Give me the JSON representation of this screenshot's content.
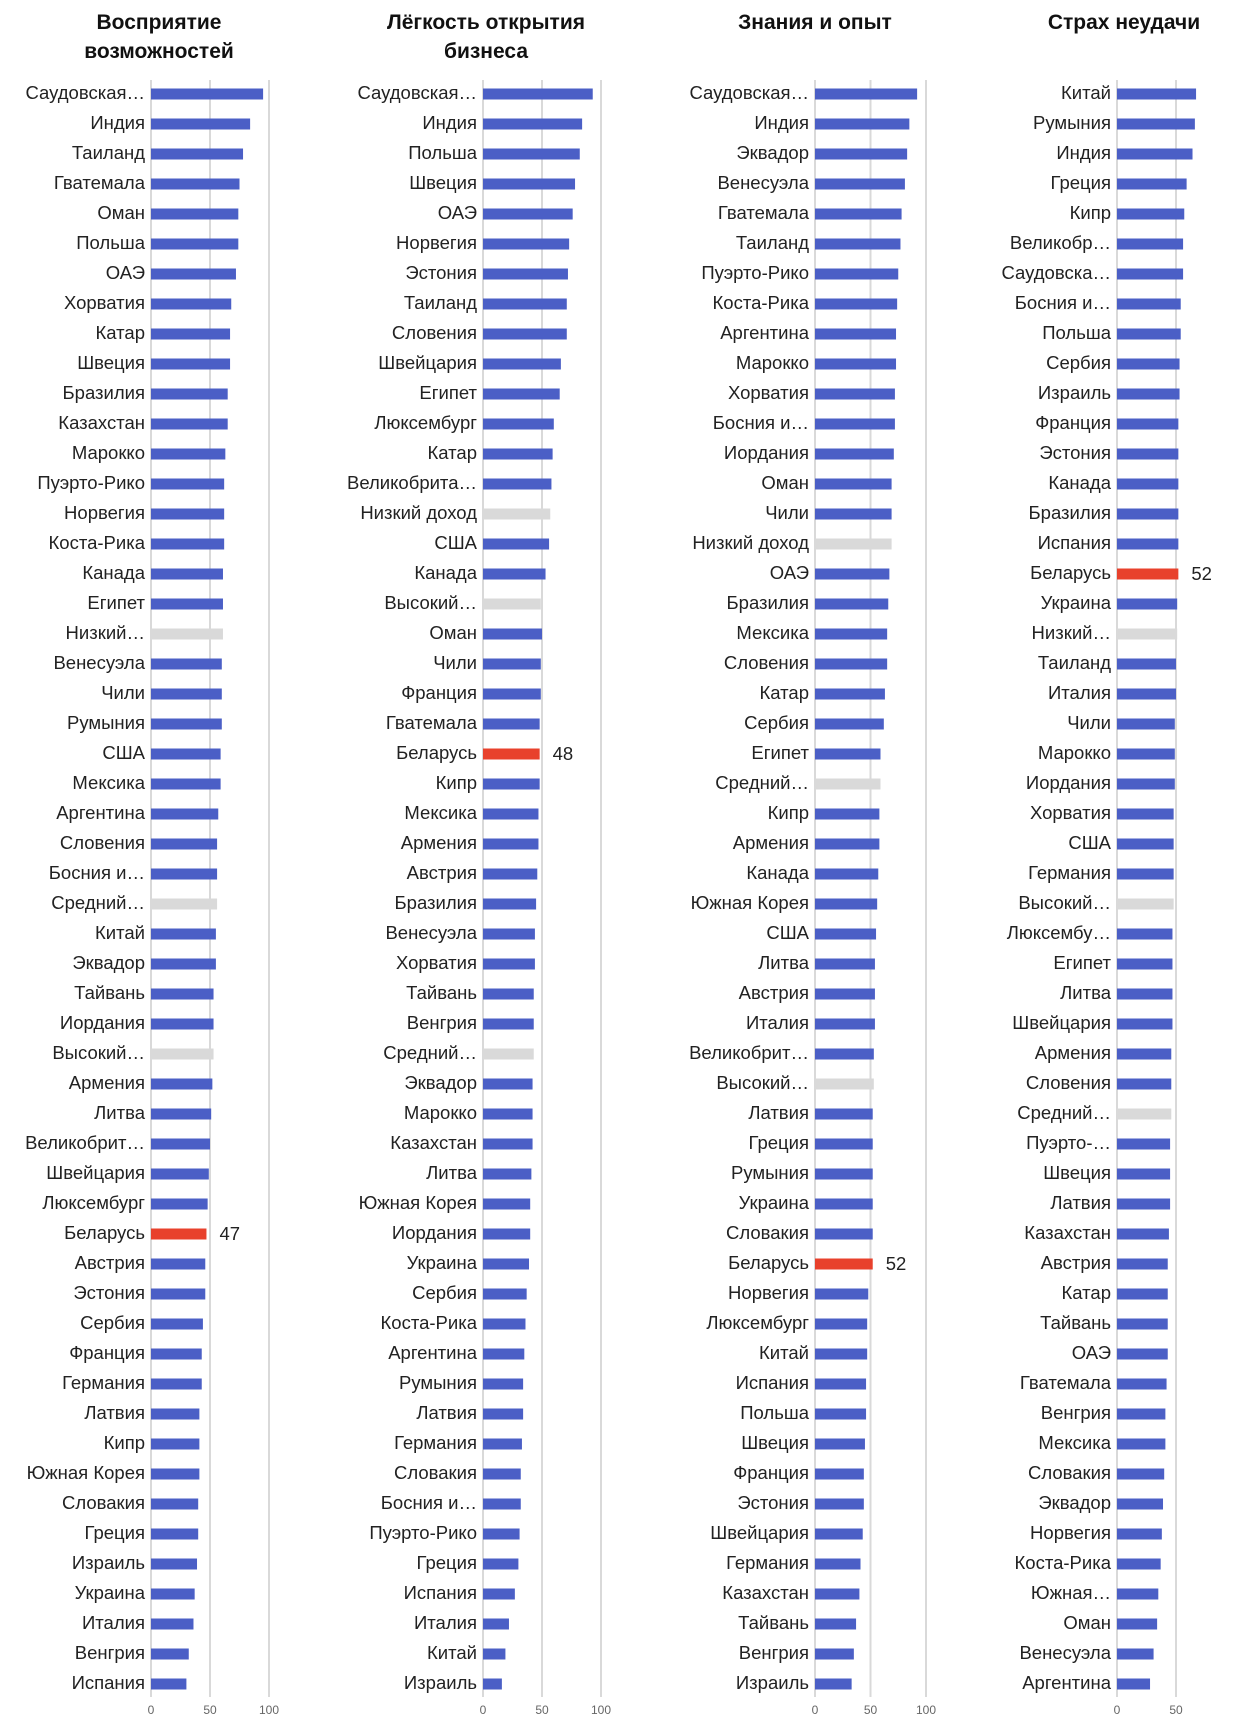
{
  "chart_data": [
    {
      "type": "bar",
      "orientation": "horizontal",
      "title": "Восприятие возможностей",
      "categories": [
        "Саудовская…",
        "Индия",
        "Таиланд",
        "Гватемала",
        "Оман",
        "Польша",
        "ОАЭ",
        "Хорватия",
        "Катар",
        "Швеция",
        "Бразилия",
        "Казахстан",
        "Марокко",
        "Пуэрто-Рико",
        "Норвегия",
        "Коста-Рика",
        "Канада",
        "Египет",
        "Низкий…",
        "Венесуэла",
        "Чили",
        "Румыния",
        "США",
        "Мексика",
        "Аргентина",
        "Словения",
        "Босния и…",
        "Средний…",
        "Китай",
        "Эквадор",
        "Тайвань",
        "Иордания",
        "Высокий…",
        "Армения",
        "Литва",
        "Великобрит…",
        "Швейцария",
        "Люксембург",
        "Беларусь",
        "Австрия",
        "Эстония",
        "Сербия",
        "Франция",
        "Германия",
        "Латвия",
        "Кипр",
        "Южная Корея",
        "Словакия",
        "Греция",
        "Израиль",
        "Украина",
        "Италия",
        "Венгрия",
        "Испания"
      ],
      "values": [
        95,
        84,
        78,
        75,
        74,
        74,
        72,
        68,
        67,
        67,
        65,
        65,
        63,
        62,
        62,
        62,
        61,
        61,
        61,
        60,
        60,
        60,
        59,
        59,
        57,
        56,
        56,
        56,
        55,
        55,
        53,
        53,
        53,
        52,
        51,
        50,
        49,
        48,
        47,
        46,
        46,
        44,
        43,
        43,
        41,
        41,
        41,
        40,
        40,
        39,
        37,
        36,
        32,
        30
      ],
      "colors": [
        "#4b5fc6",
        "#4b5fc6",
        "#4b5fc6",
        "#4b5fc6",
        "#4b5fc6",
        "#4b5fc6",
        "#4b5fc6",
        "#4b5fc6",
        "#4b5fc6",
        "#4b5fc6",
        "#4b5fc6",
        "#4b5fc6",
        "#4b5fc6",
        "#4b5fc6",
        "#4b5fc6",
        "#4b5fc6",
        "#4b5fc6",
        "#4b5fc6",
        "#d9d9d9",
        "#4b5fc6",
        "#4b5fc6",
        "#4b5fc6",
        "#4b5fc6",
        "#4b5fc6",
        "#4b5fc6",
        "#4b5fc6",
        "#4b5fc6",
        "#d9d9d9",
        "#4b5fc6",
        "#4b5fc6",
        "#4b5fc6",
        "#4b5fc6",
        "#d9d9d9",
        "#4b5fc6",
        "#4b5fc6",
        "#4b5fc6",
        "#4b5fc6",
        "#4b5fc6",
        "#e8412c",
        "#4b5fc6",
        "#4b5fc6",
        "#4b5fc6",
        "#4b5fc6",
        "#4b5fc6",
        "#4b5fc6",
        "#4b5fc6",
        "#4b5fc6",
        "#4b5fc6",
        "#4b5fc6",
        "#4b5fc6",
        "#4b5fc6",
        "#4b5fc6",
        "#4b5fc6",
        "#4b5fc6"
      ],
      "highlight_color": "#e8412c",
      "xlim": [
        0,
        100
      ],
      "xticks": [
        0,
        50,
        100
      ],
      "grid": true
    },
    {
      "type": "bar",
      "orientation": "horizontal",
      "title": "Лёгкость открытия бизнеса",
      "categories": [
        "Саудовская…",
        "Индия",
        "Польша",
        "Швеция",
        "ОАЭ",
        "Норвегия",
        "Эстония",
        "Таиланд",
        "Словения",
        "Швейцария",
        "Египет",
        "Люксембург",
        "Катар",
        "Великобрита…",
        "Низкий доход",
        "США",
        "Канада",
        "Высокий…",
        "Оман",
        "Чили",
        "Франция",
        "Гватемала",
        "Беларусь",
        "Кипр",
        "Мексика",
        "Армения",
        "Австрия",
        "Бразилия",
        "Венесуэла",
        "Хорватия",
        "Тайвань",
        "Венгрия",
        "Средний…",
        "Эквадор",
        "Марокко",
        "Казахстан",
        "Литва",
        "Южная Корея",
        "Иордания",
        "Украина",
        "Сербия",
        "Коста-Рика",
        "Аргентина",
        "Румыния",
        "Латвия",
        "Германия",
        "Словакия",
        "Босния и…",
        "Пуэрто-Рико",
        "Греция",
        "Испания",
        "Италия",
        "Китай",
        "Израиль"
      ],
      "values": [
        93,
        84,
        82,
        78,
        76,
        73,
        72,
        71,
        71,
        66,
        65,
        60,
        59,
        58,
        57,
        56,
        53,
        49,
        50,
        49,
        49,
        48,
        48,
        48,
        47,
        47,
        46,
        45,
        44,
        44,
        43,
        43,
        43,
        42,
        42,
        42,
        41,
        40,
        40,
        39,
        37,
        36,
        35,
        34,
        34,
        33,
        32,
        32,
        31,
        30,
        27,
        22,
        19,
        16
      ],
      "colors": [
        "#4b5fc6",
        "#4b5fc6",
        "#4b5fc6",
        "#4b5fc6",
        "#4b5fc6",
        "#4b5fc6",
        "#4b5fc6",
        "#4b5fc6",
        "#4b5fc6",
        "#4b5fc6",
        "#4b5fc6",
        "#4b5fc6",
        "#4b5fc6",
        "#4b5fc6",
        "#d9d9d9",
        "#4b5fc6",
        "#4b5fc6",
        "#d9d9d9",
        "#4b5fc6",
        "#4b5fc6",
        "#4b5fc6",
        "#4b5fc6",
        "#e8412c",
        "#4b5fc6",
        "#4b5fc6",
        "#4b5fc6",
        "#4b5fc6",
        "#4b5fc6",
        "#4b5fc6",
        "#4b5fc6",
        "#4b5fc6",
        "#4b5fc6",
        "#d9d9d9",
        "#4b5fc6",
        "#4b5fc6",
        "#4b5fc6",
        "#4b5fc6",
        "#4b5fc6",
        "#4b5fc6",
        "#4b5fc6",
        "#4b5fc6",
        "#4b5fc6",
        "#4b5fc6",
        "#4b5fc6",
        "#4b5fc6",
        "#4b5fc6",
        "#4b5fc6",
        "#4b5fc6",
        "#4b5fc6",
        "#4b5fc6",
        "#4b5fc6",
        "#4b5fc6",
        "#4b5fc6",
        "#4b5fc6"
      ],
      "highlight_color": "#e8412c",
      "xlim": [
        0,
        100
      ],
      "xticks": [
        0,
        50,
        100
      ],
      "grid": true
    },
    {
      "type": "bar",
      "orientation": "horizontal",
      "title": "Знания и опыт",
      "categories": [
        "Саудовская…",
        "Индия",
        "Эквадор",
        "Венесуэла",
        "Гватемала",
        "Таиланд",
        "Пуэрто-Рико",
        "Коста-Рика",
        "Аргентина",
        "Марокко",
        "Хорватия",
        "Босния и…",
        "Иордания",
        "Оман",
        "Чили",
        "Низкий доход",
        "ОАЭ",
        "Бразилия",
        "Мексика",
        "Словения",
        "Катар",
        "Сербия",
        "Египет",
        "Средний…",
        "Кипр",
        "Армения",
        "Канада",
        "Южная Корея",
        "США",
        "Литва",
        "Австрия",
        "Италия",
        "Великобрит…",
        "Высокий…",
        "Латвия",
        "Греция",
        "Румыния",
        "Украина",
        "Словакия",
        "Беларусь",
        "Норвегия",
        "Люксембург",
        "Китай",
        "Испания",
        "Польша",
        "Швеция",
        "Франция",
        "Эстония",
        "Швейцария",
        "Германия",
        "Казахстан",
        "Тайвань",
        "Венгрия",
        "Израиль"
      ],
      "values": [
        92,
        85,
        83,
        81,
        78,
        77,
        75,
        74,
        73,
        73,
        72,
        72,
        71,
        69,
        69,
        69,
        67,
        66,
        65,
        65,
        63,
        62,
        59,
        59,
        58,
        58,
        57,
        56,
        55,
        54,
        54,
        54,
        53,
        53,
        52,
        52,
        52,
        52,
        52,
        52,
        48,
        47,
        47,
        46,
        46,
        45,
        44,
        44,
        43,
        41,
        40,
        37,
        35,
        33
      ],
      "colors": [
        "#4b5fc6",
        "#4b5fc6",
        "#4b5fc6",
        "#4b5fc6",
        "#4b5fc6",
        "#4b5fc6",
        "#4b5fc6",
        "#4b5fc6",
        "#4b5fc6",
        "#4b5fc6",
        "#4b5fc6",
        "#4b5fc6",
        "#4b5fc6",
        "#4b5fc6",
        "#4b5fc6",
        "#d9d9d9",
        "#4b5fc6",
        "#4b5fc6",
        "#4b5fc6",
        "#4b5fc6",
        "#4b5fc6",
        "#4b5fc6",
        "#4b5fc6",
        "#d9d9d9",
        "#4b5fc6",
        "#4b5fc6",
        "#4b5fc6",
        "#4b5fc6",
        "#4b5fc6",
        "#4b5fc6",
        "#4b5fc6",
        "#4b5fc6",
        "#4b5fc6",
        "#d9d9d9",
        "#4b5fc6",
        "#4b5fc6",
        "#4b5fc6",
        "#4b5fc6",
        "#4b5fc6",
        "#e8412c",
        "#4b5fc6",
        "#4b5fc6",
        "#4b5fc6",
        "#4b5fc6",
        "#4b5fc6",
        "#4b5fc6",
        "#4b5fc6",
        "#4b5fc6",
        "#4b5fc6",
        "#4b5fc6",
        "#4b5fc6",
        "#4b5fc6",
        "#4b5fc6",
        "#4b5fc6"
      ],
      "highlight_color": "#e8412c",
      "xlim": [
        0,
        100
      ],
      "xticks": [
        0,
        50,
        100
      ],
      "grid": true
    },
    {
      "type": "bar",
      "orientation": "horizontal",
      "title": "Страх неудачи",
      "categories": [
        "Китай",
        "Румыния",
        "Индия",
        "Греция",
        "Кипр",
        "Великобр…",
        "Саудовска…",
        "Босния и…",
        "Польша",
        "Сербия",
        "Израиль",
        "Франция",
        "Эстония",
        "Канада",
        "Бразилия",
        "Испания",
        "Беларусь",
        "Украина",
        "Низкий…",
        "Таиланд",
        "Италия",
        "Чили",
        "Марокко",
        "Иордания",
        "Хорватия",
        "США",
        "Германия",
        "Высокий…",
        "Люксембу…",
        "Египет",
        "Литва",
        "Швейцария",
        "Армения",
        "Словения",
        "Средний…",
        "Пуэрто-…",
        "Швеция",
        "Латвия",
        "Казахстан",
        "Австрия",
        "Катар",
        "Тайвань",
        "ОАЭ",
        "Гватемала",
        "Венгрия",
        "Мексика",
        "Словакия",
        "Эквадор",
        "Норвегия",
        "Коста-Рика",
        "Южная…",
        "Оман",
        "Венесуэла",
        "Аргентина"
      ],
      "values": [
        67,
        66,
        64,
        59,
        57,
        56,
        56,
        54,
        54,
        53,
        53,
        52,
        52,
        52,
        52,
        52,
        52,
        51,
        51,
        50,
        50,
        49,
        49,
        49,
        48,
        48,
        48,
        48,
        47,
        47,
        47,
        47,
        46,
        46,
        46,
        45,
        45,
        45,
        44,
        43,
        43,
        43,
        43,
        42,
        41,
        41,
        40,
        39,
        38,
        37,
        35,
        34,
        31,
        28
      ],
      "colors": [
        "#4b5fc6",
        "#4b5fc6",
        "#4b5fc6",
        "#4b5fc6",
        "#4b5fc6",
        "#4b5fc6",
        "#4b5fc6",
        "#4b5fc6",
        "#4b5fc6",
        "#4b5fc6",
        "#4b5fc6",
        "#4b5fc6",
        "#4b5fc6",
        "#4b5fc6",
        "#4b5fc6",
        "#4b5fc6",
        "#e8412c",
        "#4b5fc6",
        "#d9d9d9",
        "#4b5fc6",
        "#4b5fc6",
        "#4b5fc6",
        "#4b5fc6",
        "#4b5fc6",
        "#4b5fc6",
        "#4b5fc6",
        "#4b5fc6",
        "#d9d9d9",
        "#4b5fc6",
        "#4b5fc6",
        "#4b5fc6",
        "#4b5fc6",
        "#4b5fc6",
        "#4b5fc6",
        "#d9d9d9",
        "#4b5fc6",
        "#4b5fc6",
        "#4b5fc6",
        "#4b5fc6",
        "#4b5fc6",
        "#4b5fc6",
        "#4b5fc6",
        "#4b5fc6",
        "#4b5fc6",
        "#4b5fc6",
        "#4b5fc6",
        "#4b5fc6",
        "#4b5fc6",
        "#4b5fc6",
        "#4b5fc6",
        "#4b5fc6",
        "#4b5fc6",
        "#4b5fc6",
        "#4b5fc6"
      ],
      "highlight_color": "#e8412c",
      "xlim": [
        0,
        100
      ],
      "xticks": [
        0,
        50
      ],
      "grid": true
    }
  ]
}
